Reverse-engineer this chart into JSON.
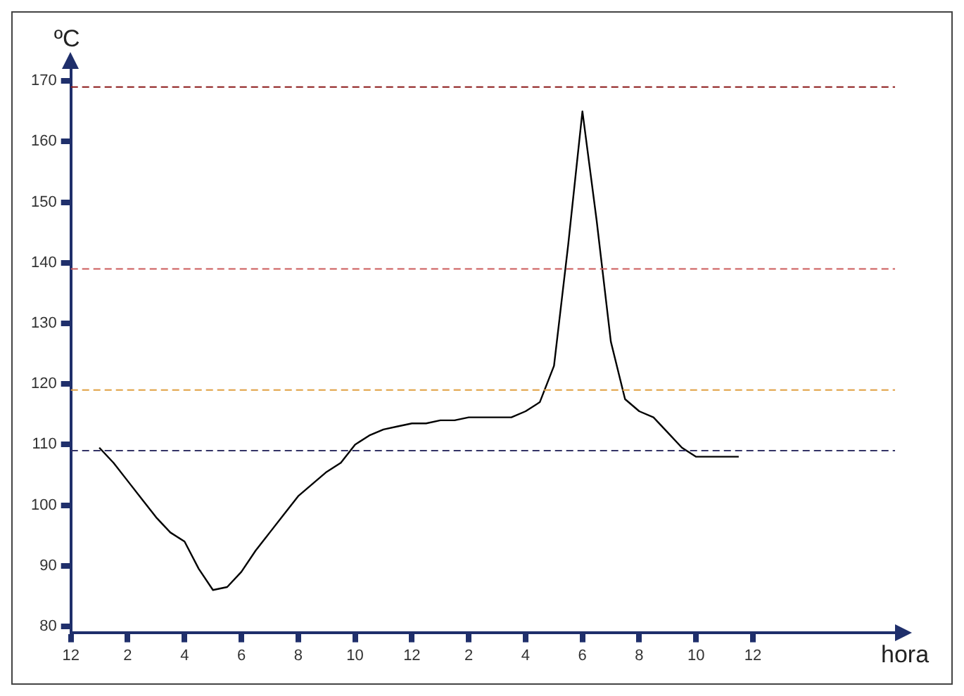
{
  "chart_data": {
    "type": "line",
    "xlabel": "hora",
    "ylabel": "ºC",
    "categories": [
      "12",
      null,
      null,
      null,
      "2",
      null,
      null,
      null,
      "4",
      null,
      null,
      null,
      "6",
      null,
      null,
      null,
      "8",
      null,
      null,
      null,
      "10",
      null,
      null,
      null,
      "12",
      null,
      null,
      null,
      "2",
      null,
      null,
      null,
      "4",
      null,
      null,
      null,
      "6",
      null,
      null,
      null,
      "8",
      null,
      null,
      null,
      "10",
      null,
      null,
      null,
      "12",
      null,
      null,
      null,
      null,
      null,
      null,
      null,
      null,
      null,
      null
    ],
    "series": [
      {
        "color": "#000000",
        "values": [
          null,
          null,
          109.5,
          107,
          104,
          101,
          98,
          95.5,
          94,
          89.5,
          86,
          86.5,
          89,
          92.5,
          95.5,
          98.5,
          101.5,
          103.5,
          105.5,
          107,
          110,
          111.5,
          112.5,
          113,
          113.5,
          113.5,
          114,
          114,
          114.5,
          114.5,
          114.5,
          114.5,
          115.5,
          117,
          123,
          143,
          165,
          147,
          127,
          117.5,
          115.5,
          114.5,
          112,
          109.5,
          108,
          108,
          108,
          108,
          null,
          null,
          null,
          null,
          null,
          null,
          null,
          null,
          null,
          null,
          null
        ]
      }
    ],
    "ylim": [
      79,
      172
    ],
    "yticks": [
      80,
      90,
      100,
      110,
      120,
      130,
      140,
      150,
      160,
      170
    ],
    "ref_lines": [
      {
        "axis": "y",
        "value": 169,
        "color": "#8b1a1a",
        "line_style": "dashed"
      },
      {
        "axis": "y",
        "value": 139,
        "color": "#cc5a5a",
        "line_style": "dashed"
      },
      {
        "axis": "y",
        "value": 119,
        "color": "#e0a040",
        "line_style": "dashed"
      },
      {
        "axis": "y",
        "value": 109,
        "color": "#333366",
        "line_style": "dashed"
      }
    ],
    "grid": false,
    "legend": false,
    "marker": "none",
    "line_style": "solid"
  }
}
